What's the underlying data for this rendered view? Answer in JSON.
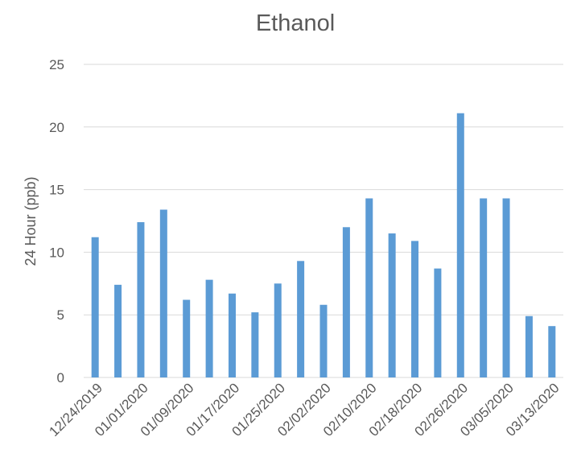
{
  "chart_data": {
    "type": "bar",
    "title": "Ethanol",
    "y_label": "24 Hour (ppb)",
    "categories": [
      "12/24/2019",
      null,
      "01/01/2020",
      null,
      "01/09/2020",
      null,
      "01/17/2020",
      null,
      "01/25/2020",
      null,
      "02/02/2020",
      null,
      "02/10/2020",
      null,
      "02/18/2020",
      null,
      "02/26/2020",
      null,
      "03/05/2020",
      null,
      "03/13/2020"
    ],
    "values": [
      11.2,
      7.4,
      12.4,
      13.4,
      6.2,
      7.8,
      6.7,
      5.2,
      7.5,
      9.3,
      5.8,
      12.0,
      14.3,
      11.5,
      10.9,
      8.7,
      21.1,
      14.3,
      14.3,
      4.9,
      4.1
    ],
    "color": "#5b9bd5",
    "ylim": [
      0,
      25
    ],
    "yticks": [
      0,
      5,
      10,
      15,
      20,
      25
    ],
    "grid": true
  }
}
